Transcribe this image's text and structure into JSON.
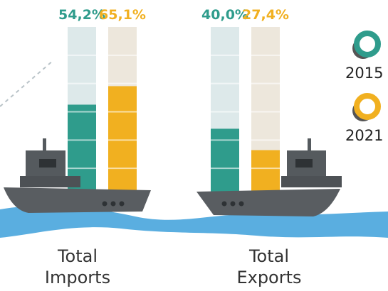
{
  "chart_data": {
    "type": "bar",
    "categories": [
      "Total Imports",
      "Total Exports"
    ],
    "series": [
      {
        "name": "2015",
        "color": "#2f9c8c",
        "values": [
          54.2,
          40.0
        ],
        "value_labels": [
          "54,2%",
          "40,0%"
        ]
      },
      {
        "name": "2021",
        "color": "#f1b020",
        "values": [
          65.1,
          27.4
        ],
        "value_labels": [
          "65,1%",
          "27,4%"
        ]
      }
    ],
    "ylim": [
      0,
      100
    ]
  }
}
